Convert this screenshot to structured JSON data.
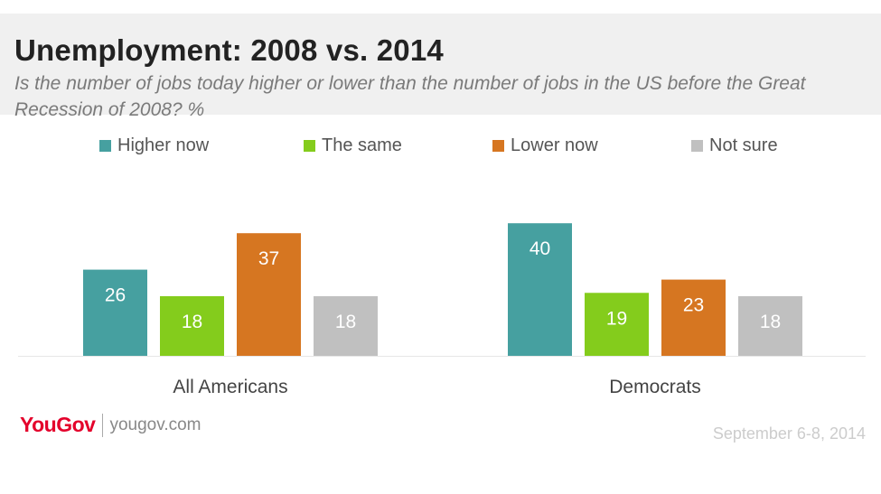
{
  "header": {
    "title": "Unemployment: 2008 vs. 2014",
    "subtitle": "Is the number of jobs today higher or lower than the number of jobs in the US before the Great Recession of 2008? %"
  },
  "legend": [
    {
      "label": "Higher now",
      "color": "#46a0a0"
    },
    {
      "label": "The same",
      "color": "#84cc1c"
    },
    {
      "label": "Lower now",
      "color": "#d67621"
    },
    {
      "label": "Not sure",
      "color": "#c0c0c0"
    }
  ],
  "chart_data": {
    "type": "bar",
    "categories": [
      "All Americans",
      "Democrats"
    ],
    "series": [
      {
        "name": "Higher now",
        "color": "#46a0a0",
        "values": [
          26,
          40
        ]
      },
      {
        "name": "The same",
        "color": "#84cc1c",
        "values": [
          18,
          19
        ]
      },
      {
        "name": "Lower now",
        "color": "#d67621",
        "values": [
          37,
          23
        ]
      },
      {
        "name": "Not sure",
        "color": "#c0c0c0",
        "values": [
          18,
          18
        ]
      }
    ],
    "title": "Unemployment: 2008 vs. 2014",
    "subtitle": "Is the number of jobs today higher or lower than the number of jobs in the US before the Great Recession of 2008? %",
    "ylim": [
      0,
      40
    ],
    "grid": false,
    "legend_position": "top",
    "data_labels": true
  },
  "footer": {
    "logo": "YouGov",
    "url": "yougov.com",
    "date": "September 6-8, 2014"
  }
}
